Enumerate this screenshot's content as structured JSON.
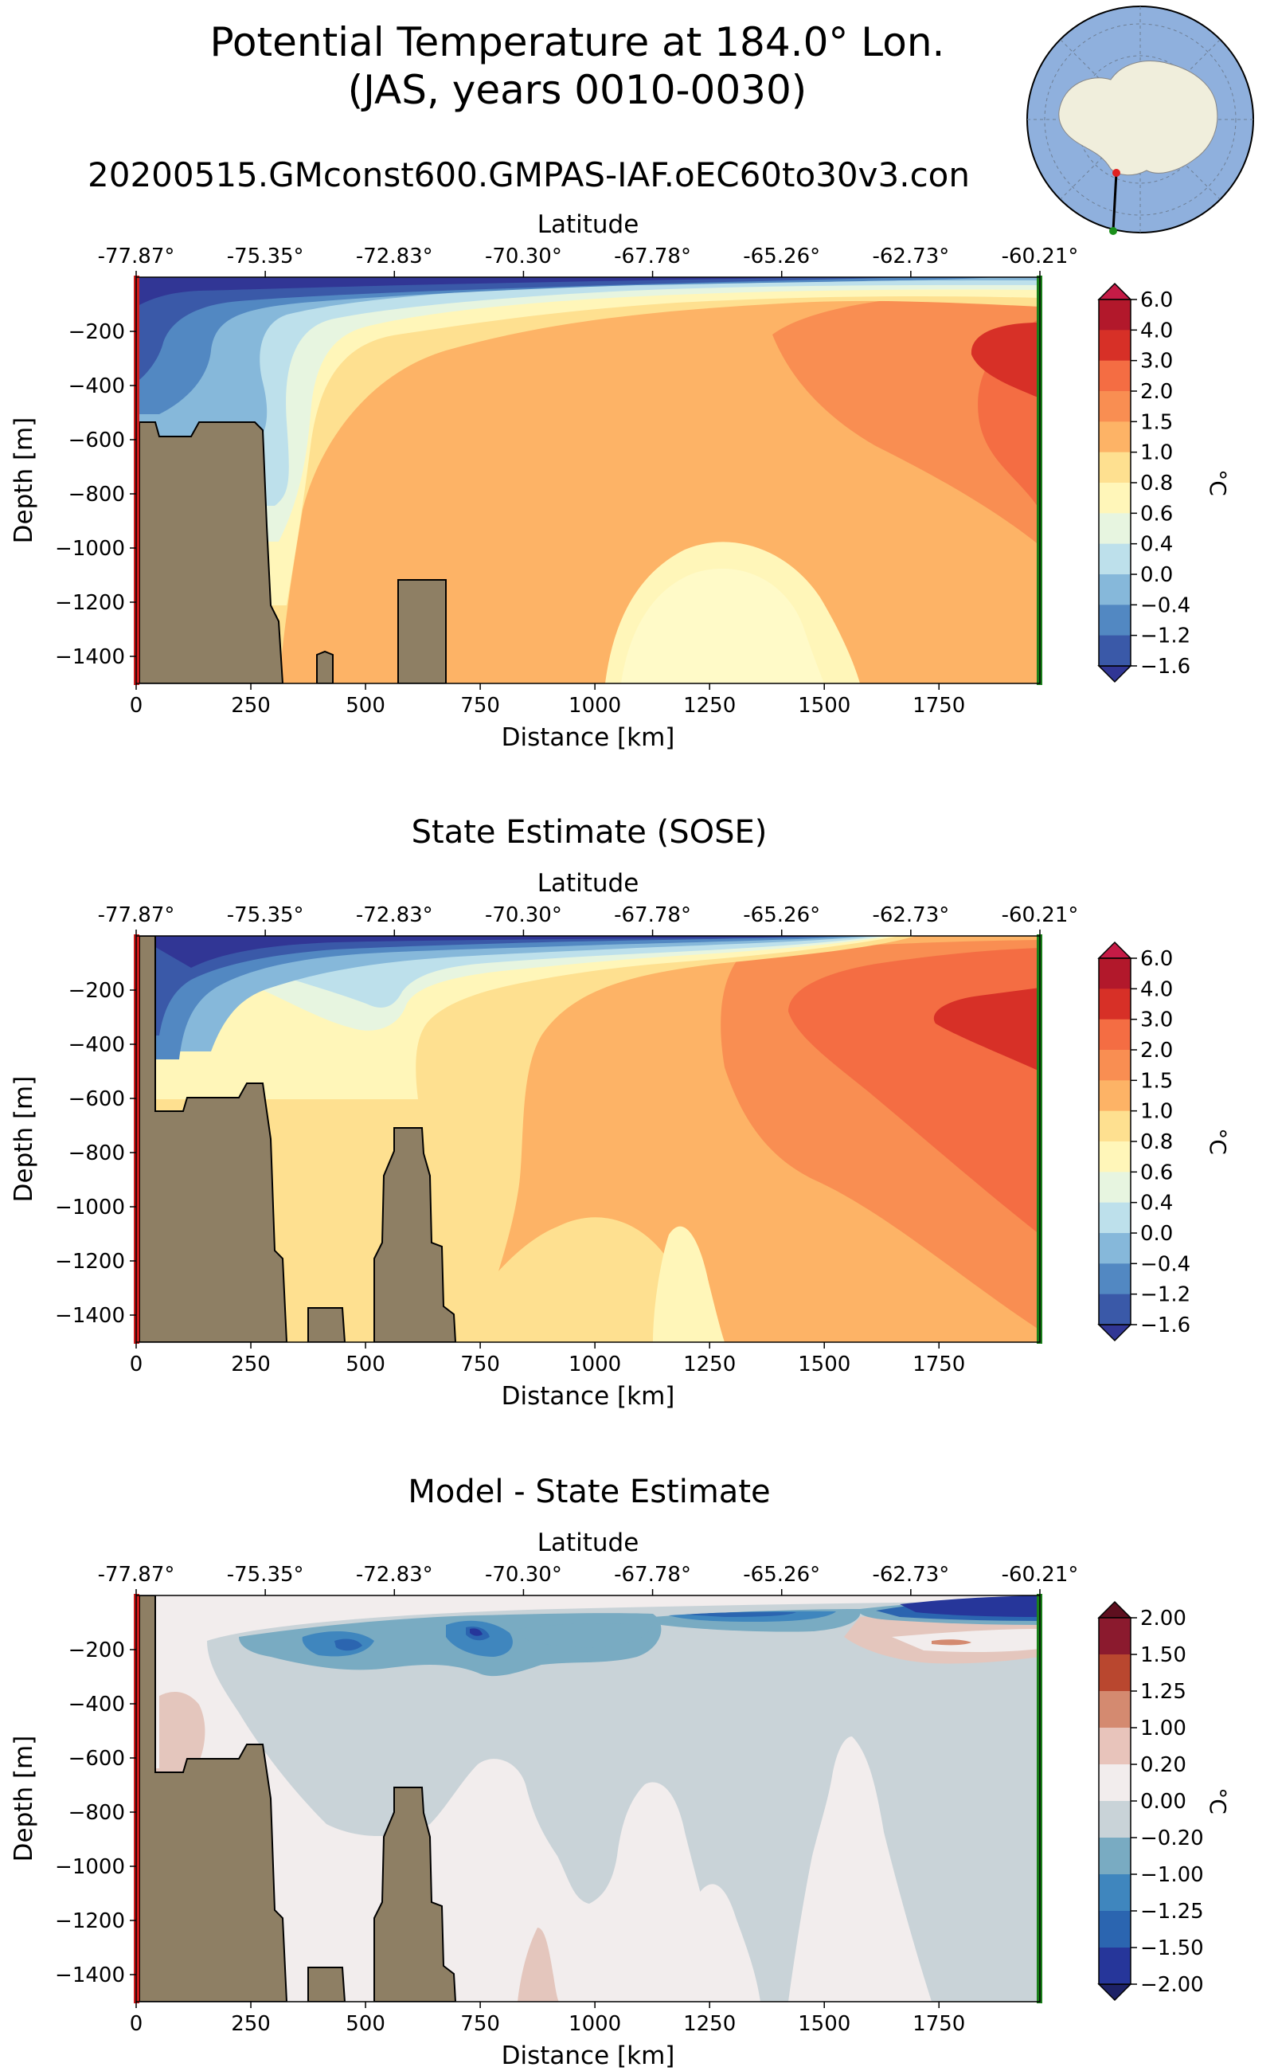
{
  "figure": {
    "title_line1": "Potential Temperature at 184.0° Lon.",
    "title_line2": "(JAS, years 0010-0030)",
    "subtitle": "20200515.GMconst600.GMPAS-IAF.oEC60to30v3.con"
  },
  "colors": {
    "land": "#8e7f64",
    "start_marker": "#d01c1c",
    "end_marker": "#1a7f1a",
    "ocean_map": "#8fb0dd",
    "land_map": "#f0eedc"
  },
  "chart_data": [
    {
      "type": "heatmap",
      "id": "model",
      "title": "",
      "top_axis_label": "Latitude",
      "top_ticks": [
        "-77.87°",
        "-75.35°",
        "-72.83°",
        "-70.30°",
        "-67.78°",
        "-65.26°",
        "-62.73°",
        "-60.21°"
      ],
      "xlabel": "Distance [km]",
      "xticks": [
        0,
        250,
        500,
        750,
        1000,
        1250,
        1500,
        1750
      ],
      "xlim": [
        0,
        1970
      ],
      "ylabel": "Depth [m]",
      "yticks": [
        -200,
        -400,
        -600,
        -800,
        -1000,
        -1200,
        -1400
      ],
      "ylim": [
        -1500,
        0
      ],
      "colorbar_label": "°C",
      "colorbar_ticks": [
        "6.0",
        "4.0",
        "3.0",
        "2.0",
        "1.5",
        "1.0",
        "0.8",
        "0.6",
        "0.4",
        "0.0",
        "−0.4",
        "−1.2",
        "−1.6"
      ],
      "colorbar_colors": [
        "#b2182b",
        "#d73027",
        "#f46d43",
        "#f98e52",
        "#fdb366",
        "#fee090",
        "#fff6b9",
        "#e7f5e0",
        "#bde0eb",
        "#86b8da",
        "#5288c2",
        "#3a59a8"
      ],
      "colorbar_extend_high": "#c51b46",
      "colorbar_extend_low": "#313695"
    },
    {
      "type": "heatmap",
      "id": "sose",
      "title": "State Estimate (SOSE)",
      "top_axis_label": "Latitude",
      "top_ticks": [
        "-77.87°",
        "-75.35°",
        "-72.83°",
        "-70.30°",
        "-67.78°",
        "-65.26°",
        "-62.73°",
        "-60.21°"
      ],
      "xlabel": "Distance [km]",
      "xticks": [
        0,
        250,
        500,
        750,
        1000,
        1250,
        1500,
        1750
      ],
      "xlim": [
        0,
        1970
      ],
      "ylabel": "Depth [m]",
      "yticks": [
        -200,
        -400,
        -600,
        -800,
        -1000,
        -1200,
        -1400
      ],
      "ylim": [
        -1500,
        0
      ],
      "colorbar_label": "°C",
      "colorbar_ticks": [
        "6.0",
        "4.0",
        "3.0",
        "2.0",
        "1.5",
        "1.0",
        "0.8",
        "0.6",
        "0.4",
        "0.0",
        "−0.4",
        "−1.2",
        "−1.6"
      ],
      "colorbar_colors": [
        "#b2182b",
        "#d73027",
        "#f46d43",
        "#f98e52",
        "#fdb366",
        "#fee090",
        "#fff6b9",
        "#e7f5e0",
        "#bde0eb",
        "#86b8da",
        "#5288c2",
        "#3a59a8"
      ],
      "colorbar_extend_high": "#c51b46",
      "colorbar_extend_low": "#313695"
    },
    {
      "type": "heatmap",
      "id": "diff",
      "title": "Model - State Estimate",
      "top_axis_label": "Latitude",
      "top_ticks": [
        "-77.87°",
        "-75.35°",
        "-72.83°",
        "-70.30°",
        "-67.78°",
        "-65.26°",
        "-62.73°",
        "-60.21°"
      ],
      "xlabel": "Distance [km]",
      "xticks": [
        0,
        250,
        500,
        750,
        1000,
        1250,
        1500,
        1750
      ],
      "xlim": [
        0,
        1970
      ],
      "ylabel": "Depth [m]",
      "yticks": [
        -200,
        -400,
        -600,
        -800,
        -1000,
        -1200,
        -1400
      ],
      "ylim": [
        -1500,
        0
      ],
      "colorbar_label": "°C",
      "colorbar_ticks": [
        "2.00",
        "1.50",
        "1.25",
        "1.00",
        "0.20",
        "0.00",
        "−0.20",
        "−1.00",
        "−1.25",
        "−1.50",
        "−2.00"
      ],
      "colorbar_colors": [
        "#8b1a2e",
        "#b9472f",
        "#d48a70",
        "#e8c4bb",
        "#f2eded",
        "#c9d3d8",
        "#79abc2",
        "#3f86be",
        "#2b65b0",
        "#26369a"
      ],
      "colorbar_extend_high": "#5e0f1f",
      "colorbar_extend_low": "#1d2266"
    }
  ]
}
